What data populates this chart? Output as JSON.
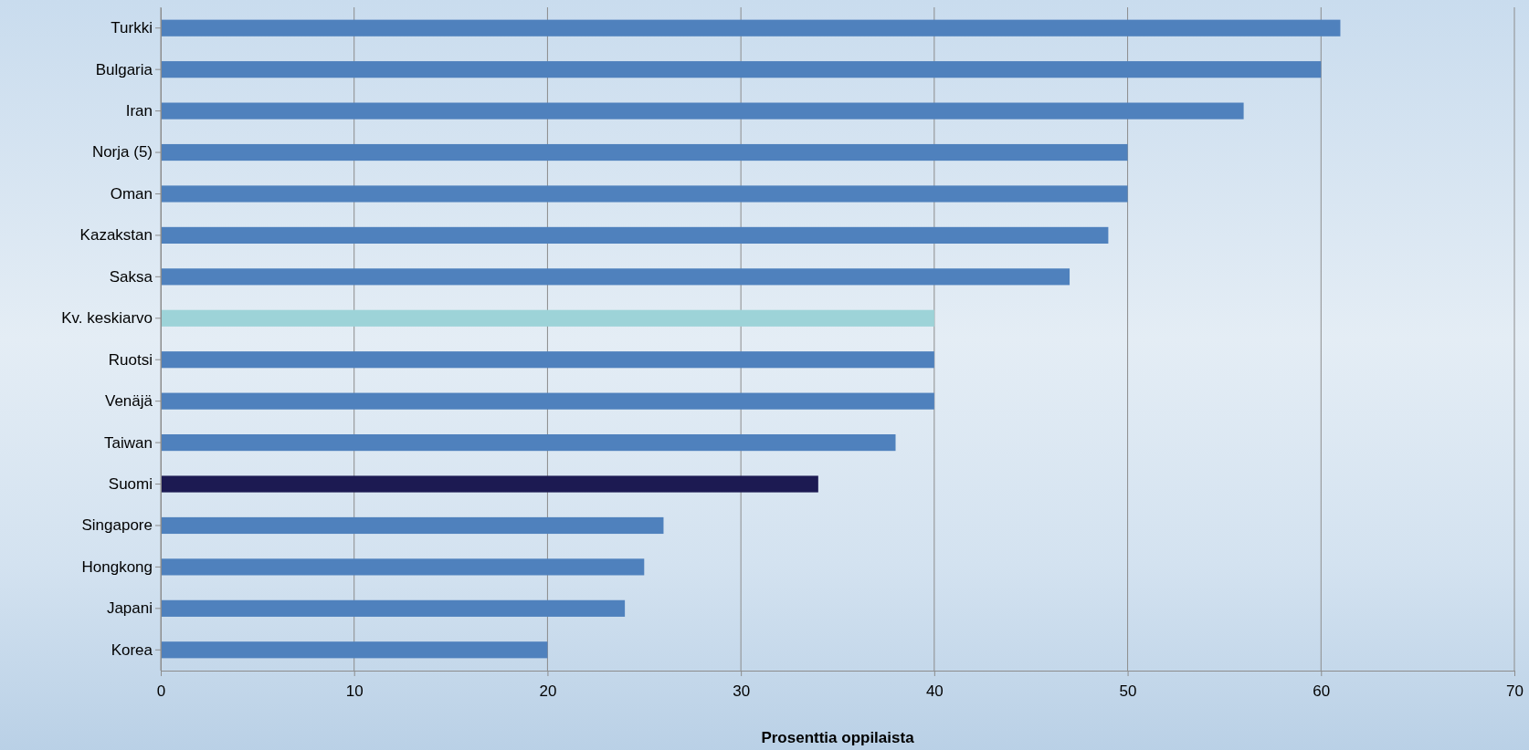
{
  "chart_data": {
    "type": "bar",
    "orientation": "horizontal",
    "xlabel": "Prosenttia oppilaista",
    "categories": [
      "Turkki",
      "Bulgaria",
      "Iran",
      "Norja (5)",
      "Oman",
      "Kazakstan",
      "Saksa",
      "Kv. keskiarvo",
      "Ruotsi",
      "Venäjä",
      "Taiwan",
      "Suomi",
      "Singapore",
      "Hongkong",
      "Japani",
      "Korea"
    ],
    "values": [
      61,
      60,
      56,
      50,
      50,
      49,
      47,
      40,
      40,
      40,
      38,
      34,
      26,
      25,
      24,
      20
    ],
    "colors": [
      "#4f81bd",
      "#4f81bd",
      "#4f81bd",
      "#4f81bd",
      "#4f81bd",
      "#4f81bd",
      "#4f81bd",
      "#9dd3d8",
      "#4f81bd",
      "#4f81bd",
      "#4f81bd",
      "#1c1a52",
      "#4f81bd",
      "#4f81bd",
      "#4f81bd",
      "#4f81bd"
    ],
    "xlim": [
      0,
      70
    ],
    "xticks": [
      0,
      10,
      20,
      30,
      40,
      50,
      60,
      70
    ],
    "grid": "x"
  }
}
